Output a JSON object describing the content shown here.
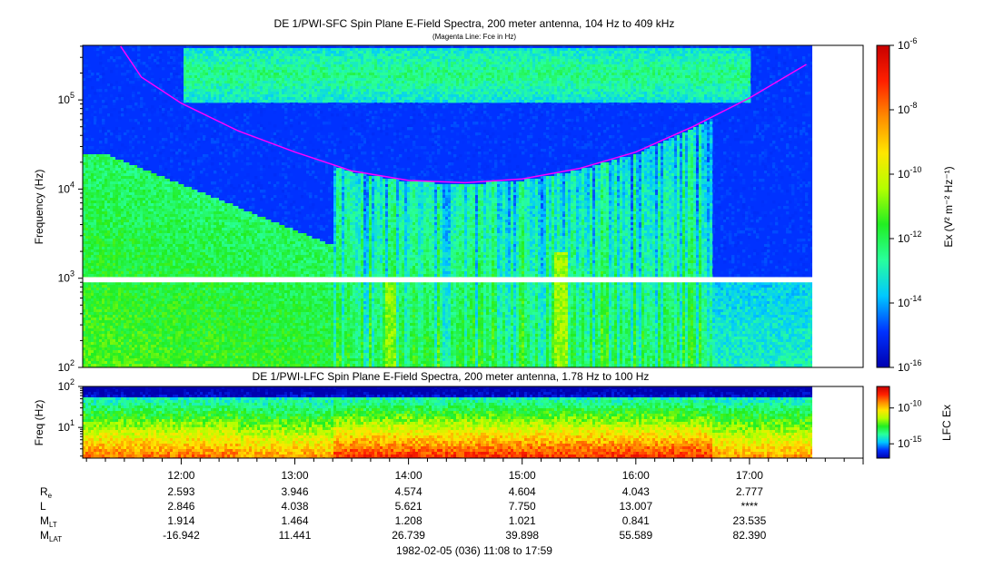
{
  "chart_data": [
    {
      "type": "heatmap",
      "title": "DE 1/PWI-SFC  Spin Plane E-Field Spectra, 200 meter antenna, 104 Hz to 409 kHz",
      "subtitle": "(Magenta Line: Fce in Hz)",
      "ylabel": "Frequency (Hz)",
      "yscale": "log",
      "ylim": [
        100,
        409000
      ],
      "yticks": [
        {
          "value": 100,
          "base": "10",
          "exp": "2"
        },
        {
          "value": 1000,
          "base": "10",
          "exp": "3"
        },
        {
          "value": 10000,
          "base": "10",
          "exp": "4"
        },
        {
          "value": 100000,
          "base": "10",
          "exp": "5"
        }
      ],
      "xlim": [
        "11:08",
        "17:59"
      ],
      "data_gap_hz": [
        900,
        1030
      ],
      "colorbar": {
        "label": "Ex (V² m⁻² Hz⁻¹)",
        "scale": "log",
        "range": [
          1e-16,
          1e-06
        ],
        "ticks": [
          {
            "value": 1e-06,
            "base": "10",
            "exp": "-6"
          },
          {
            "value": 1e-08,
            "base": "10",
            "exp": "-8"
          },
          {
            "value": 1e-10,
            "base": "10",
            "exp": "-10"
          },
          {
            "value": 1e-12,
            "base": "10",
            "exp": "-12"
          },
          {
            "value": 1e-14,
            "base": "10",
            "exp": "-14"
          },
          {
            "value": 1e-16,
            "base": "10",
            "exp": "-16"
          }
        ],
        "colors": [
          "#0000b0",
          "#0032ff",
          "#00c8ff",
          "#28ff9c",
          "#22ee22",
          "#b4ff00",
          "#ffe600",
          "#ff8c00",
          "#ff2000",
          "#c80000"
        ]
      },
      "fce_line": {
        "color": "#ff00ff",
        "points": [
          [
            "11:28",
            400000
          ],
          [
            "11:39",
            180000
          ],
          [
            "12:00",
            92000
          ],
          [
            "12:30",
            45000
          ],
          [
            "13:00",
            26000
          ],
          [
            "13:30",
            16000
          ],
          [
            "14:00",
            12500
          ],
          [
            "14:30",
            11800
          ],
          [
            "15:00",
            13000
          ],
          [
            "15:30",
            17000
          ],
          [
            "16:00",
            26000
          ],
          [
            "16:30",
            50000
          ],
          [
            "17:00",
            105000
          ],
          [
            "17:30",
            250000
          ]
        ]
      }
    },
    {
      "type": "heatmap",
      "title": "DE 1/PWI-LFC  Spin Plane E-Field Spectra, 200 meter antenna, 1.78 Hz to 100 Hz",
      "ylabel": "Freq (Hz)",
      "yscale": "log",
      "ylim": [
        1.78,
        100
      ],
      "yticks": [
        {
          "value": 10,
          "base": "10",
          "exp": "1"
        },
        {
          "value": 100,
          "base": "10",
          "exp": "2"
        }
      ],
      "colorbar": {
        "label": "LFC Ex",
        "scale": "log",
        "range": [
          1e-17,
          1e-07
        ],
        "ticks": [
          {
            "value": 1e-10,
            "base": "10",
            "exp": "-10"
          },
          {
            "value": 1e-15,
            "base": "10",
            "exp": "-15"
          }
        ]
      }
    }
  ],
  "xaxis": {
    "ticks": [
      "12:00",
      "13:00",
      "14:00",
      "15:00",
      "16:00",
      "17:00"
    ],
    "caption": "1982-02-05 (036) 11:08 to 17:59"
  },
  "ephemeris": {
    "rows": [
      {
        "label": "R",
        "sub": "e",
        "values": [
          "2.593",
          "3.946",
          "4.574",
          "4.604",
          "4.043",
          "2.777"
        ]
      },
      {
        "label": "L",
        "sub": "",
        "values": [
          "2.846",
          "4.038",
          "5.621",
          "7.750",
          "13.007",
          "****"
        ]
      },
      {
        "label": "M",
        "sub": "LT",
        "values": [
          "1.914",
          "1.464",
          "1.208",
          "1.021",
          "0.841",
          "23.535"
        ]
      },
      {
        "label": "M",
        "sub": "LAT",
        "values": [
          "-16.942",
          "11.441",
          "26.739",
          "39.898",
          "55.589",
          "82.390"
        ]
      }
    ]
  }
}
